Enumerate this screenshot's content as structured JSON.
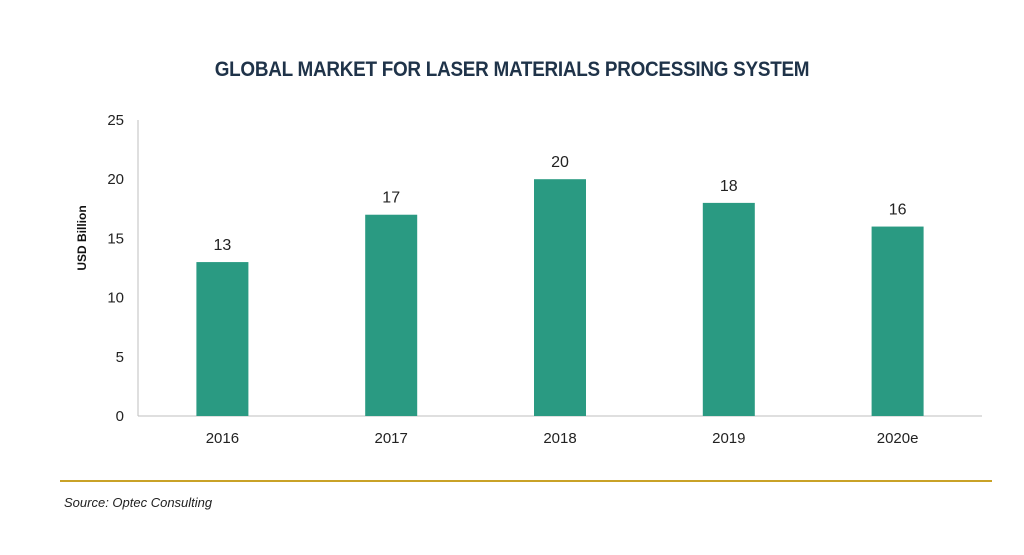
{
  "chart_data": {
    "type": "bar",
    "title": "GLOBAL MARKET FOR LASER MATERIALS PROCESSING SYSTEM",
    "xlabel": "",
    "ylabel": "USD Billion",
    "categories": [
      "2016",
      "2017",
      "2018",
      "2019",
      "2020e"
    ],
    "values": [
      13,
      17,
      20,
      18,
      16
    ],
    "ylim": [
      0,
      25
    ],
    "yticks": [
      0,
      5,
      10,
      15,
      20,
      25
    ],
    "grid": false,
    "bar_color": "#2a9a82"
  },
  "source": "Source: Optec Consulting",
  "colors": {
    "divider": "#c9a227",
    "title": "#1f3349"
  }
}
